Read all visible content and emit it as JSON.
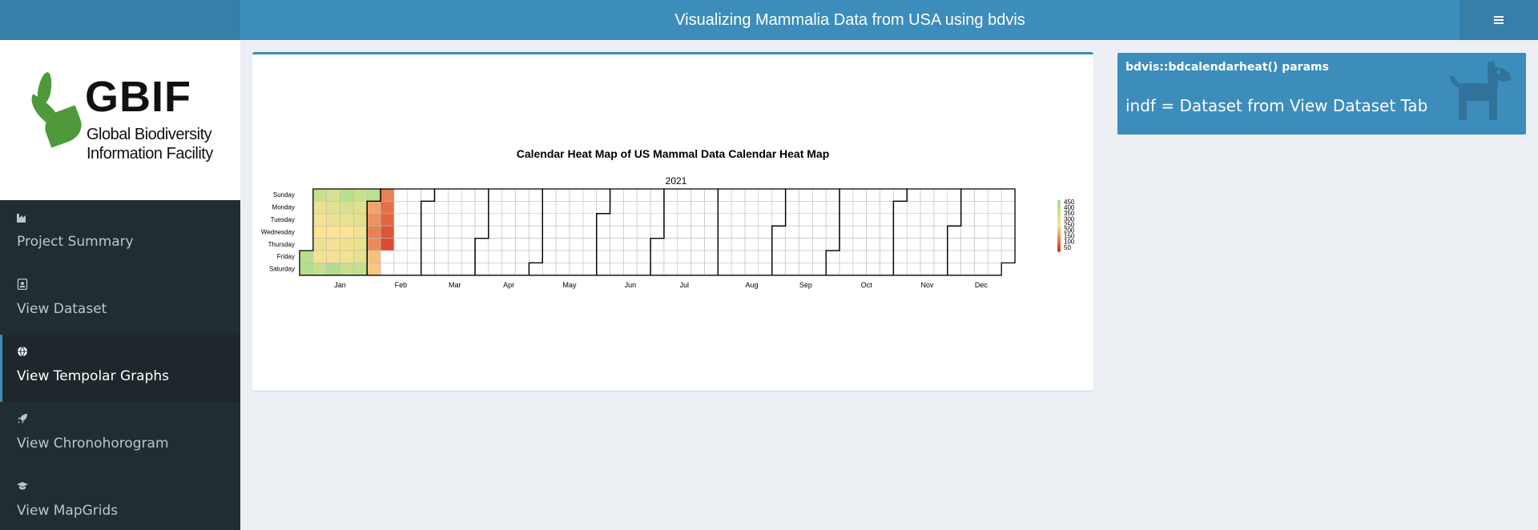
{
  "header": {
    "title": "Visualizing Mammalia Data from USA using bdvis"
  },
  "logo": {
    "word": "GBIF",
    "line1": "Global Biodiversity",
    "line2": "Information Facility"
  },
  "sidebar": {
    "items": [
      {
        "label": "Project Summary",
        "icon": "industry-icon",
        "active": false
      },
      {
        "label": "View Dataset",
        "icon": "id-badge-icon",
        "active": false
      },
      {
        "label": "View Tempolar Graphs",
        "icon": "globe-icon",
        "active": true
      },
      {
        "label": "View Chronohorogram",
        "icon": "rocket-icon",
        "active": false
      },
      {
        "label": "View MapGrids",
        "icon": "graduation-cap-icon",
        "active": false
      }
    ]
  },
  "info_box": {
    "title": "bdvis::bdcalendarheat() params",
    "text": "indf = Dataset from View Dataset Tab",
    "icon": "dog-icon",
    "color": "#3c8dbc"
  },
  "chart_data": {
    "type": "heatmap",
    "title": "Calendar Heat Map of US Mammal Data Calendar Heat Map",
    "year_label": "2021",
    "day_labels": [
      "Sunday",
      "Monday",
      "Tuesday",
      "Wednesday",
      "Thursday",
      "Friday",
      "Saturday"
    ],
    "month_labels": [
      "Jan",
      "Feb",
      "Mar",
      "Apr",
      "May",
      "Jun",
      "Jul",
      "Aug",
      "Sep",
      "Oct",
      "Nov",
      "Dec"
    ],
    "legend_ticks": [
      450,
      400,
      350,
      300,
      250,
      200,
      150,
      100,
      50
    ],
    "colors": {
      "low": "#d7301f",
      "mid": "#fee391",
      "high": "#addd8e",
      "empty": "#ffffff"
    },
    "daily_values": [
      {
        "date": "2021-01-01",
        "value": 420
      },
      {
        "date": "2021-01-02",
        "value": 430
      },
      {
        "date": "2021-01-03",
        "value": 380
      },
      {
        "date": "2021-01-04",
        "value": 300
      },
      {
        "date": "2021-01-05",
        "value": 280
      },
      {
        "date": "2021-01-06",
        "value": 260
      },
      {
        "date": "2021-01-07",
        "value": 300
      },
      {
        "date": "2021-01-08",
        "value": 280
      },
      {
        "date": "2021-01-09",
        "value": 390
      },
      {
        "date": "2021-01-10",
        "value": 350
      },
      {
        "date": "2021-01-11",
        "value": 320
      },
      {
        "date": "2021-01-12",
        "value": 300
      },
      {
        "date": "2021-01-13",
        "value": 250
      },
      {
        "date": "2021-01-14",
        "value": 280
      },
      {
        "date": "2021-01-15",
        "value": 270
      },
      {
        "date": "2021-01-16",
        "value": 440
      },
      {
        "date": "2021-01-17",
        "value": 420
      },
      {
        "date": "2021-01-18",
        "value": 350
      },
      {
        "date": "2021-01-19",
        "value": 300
      },
      {
        "date": "2021-01-20",
        "value": 260
      },
      {
        "date": "2021-01-21",
        "value": 290
      },
      {
        "date": "2021-01-22",
        "value": 280
      },
      {
        "date": "2021-01-23",
        "value": 380
      },
      {
        "date": "2021-01-24",
        "value": 380
      },
      {
        "date": "2021-01-25",
        "value": 330
      },
      {
        "date": "2021-01-26",
        "value": 320
      },
      {
        "date": "2021-01-27",
        "value": 280
      },
      {
        "date": "2021-01-28",
        "value": 300
      },
      {
        "date": "2021-01-29",
        "value": 310
      },
      {
        "date": "2021-01-30",
        "value": 390
      },
      {
        "date": "2021-01-31",
        "value": 410
      },
      {
        "date": "2021-02-01",
        "value": 180
      },
      {
        "date": "2021-02-02",
        "value": 160
      },
      {
        "date": "2021-02-03",
        "value": 140
      },
      {
        "date": "2021-02-04",
        "value": 150
      },
      {
        "date": "2021-02-05",
        "value": 210
      },
      {
        "date": "2021-02-06",
        "value": 220
      },
      {
        "date": "2021-02-07",
        "value": 140
      },
      {
        "date": "2021-02-08",
        "value": 120
      },
      {
        "date": "2021-02-09",
        "value": 110
      },
      {
        "date": "2021-02-10",
        "value": 90
      },
      {
        "date": "2021-02-11",
        "value": 80
      }
    ]
  }
}
